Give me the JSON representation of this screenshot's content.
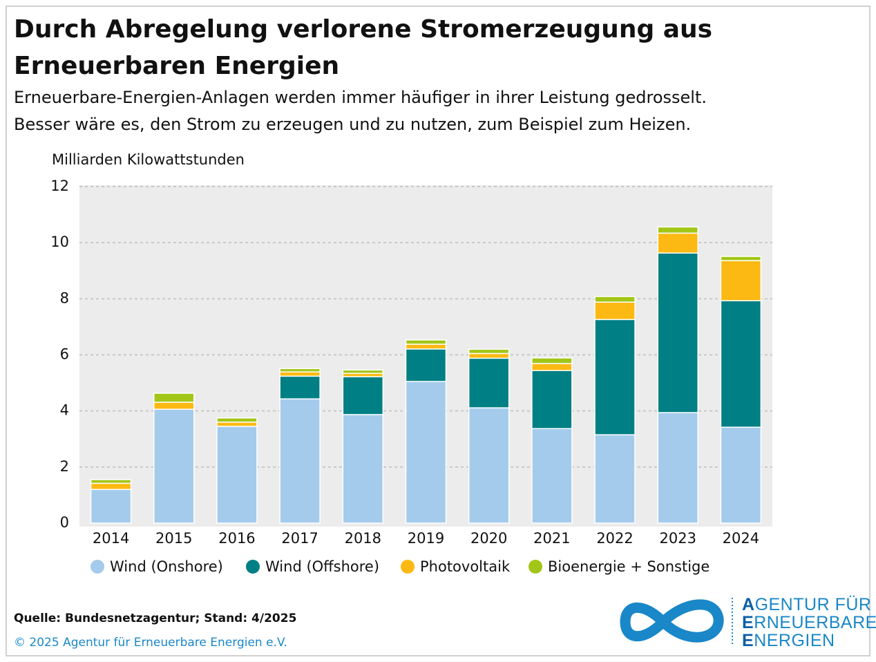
{
  "chart_data": {
    "type": "stacked_bar",
    "title": [
      "Durch Abregelung verlorene Stromerzeugung aus",
      "Erneuerbaren Energien"
    ],
    "subtitle": [
      "Erneuerbare-Energien-Anlagen werden immer häufiger in ihrer Leistung gedrosselt.",
      "Besser wäre es, den Strom zu erzeugen und zu nutzen, zum Beispiel zum Heizen."
    ],
    "ylabel": "Milliarden Kilowattstunden",
    "categories": [
      "2014",
      "2015",
      "2016",
      "2017",
      "2018",
      "2019",
      "2020",
      "2021",
      "2022",
      "2023",
      "2024"
    ],
    "series": [
      {
        "name": "Wind (Onshore)",
        "color": "#a4cbec",
        "values": [
          1.2,
          4.06,
          3.45,
          4.43,
          3.87,
          5.05,
          4.11,
          3.37,
          3.15,
          3.94,
          3.42
        ]
      },
      {
        "name": "Wind (Offshore)",
        "color": "#007f84",
        "values": [
          0,
          0,
          0,
          0.81,
          1.35,
          1.16,
          1.77,
          2.07,
          4.11,
          5.69,
          4.51
        ]
      },
      {
        "name": "Photovoltaik",
        "color": "#fdb913",
        "values": [
          0.22,
          0.25,
          0.15,
          0.15,
          0.12,
          0.17,
          0.17,
          0.25,
          0.62,
          0.71,
          1.43
        ]
      },
      {
        "name": "Bioenergie + Sonstige",
        "color": "#a2c617",
        "values": [
          0.13,
          0.32,
          0.15,
          0.12,
          0.12,
          0.15,
          0.15,
          0.2,
          0.2,
          0.22,
          0.15
        ]
      }
    ],
    "ylim": [
      0,
      12
    ],
    "yticks": [
      0,
      2,
      4,
      6,
      8,
      10,
      12
    ],
    "grid": true
  },
  "source": "Quelle: Bundesnetzagentur; Stand: 4/2025",
  "copyright": "© 2025 Agentur für Erneuerbare Energien e.V.",
  "logo": [
    "AGENTUR FÜR",
    "ERNEUERBARE",
    "ENERGIEN"
  ]
}
